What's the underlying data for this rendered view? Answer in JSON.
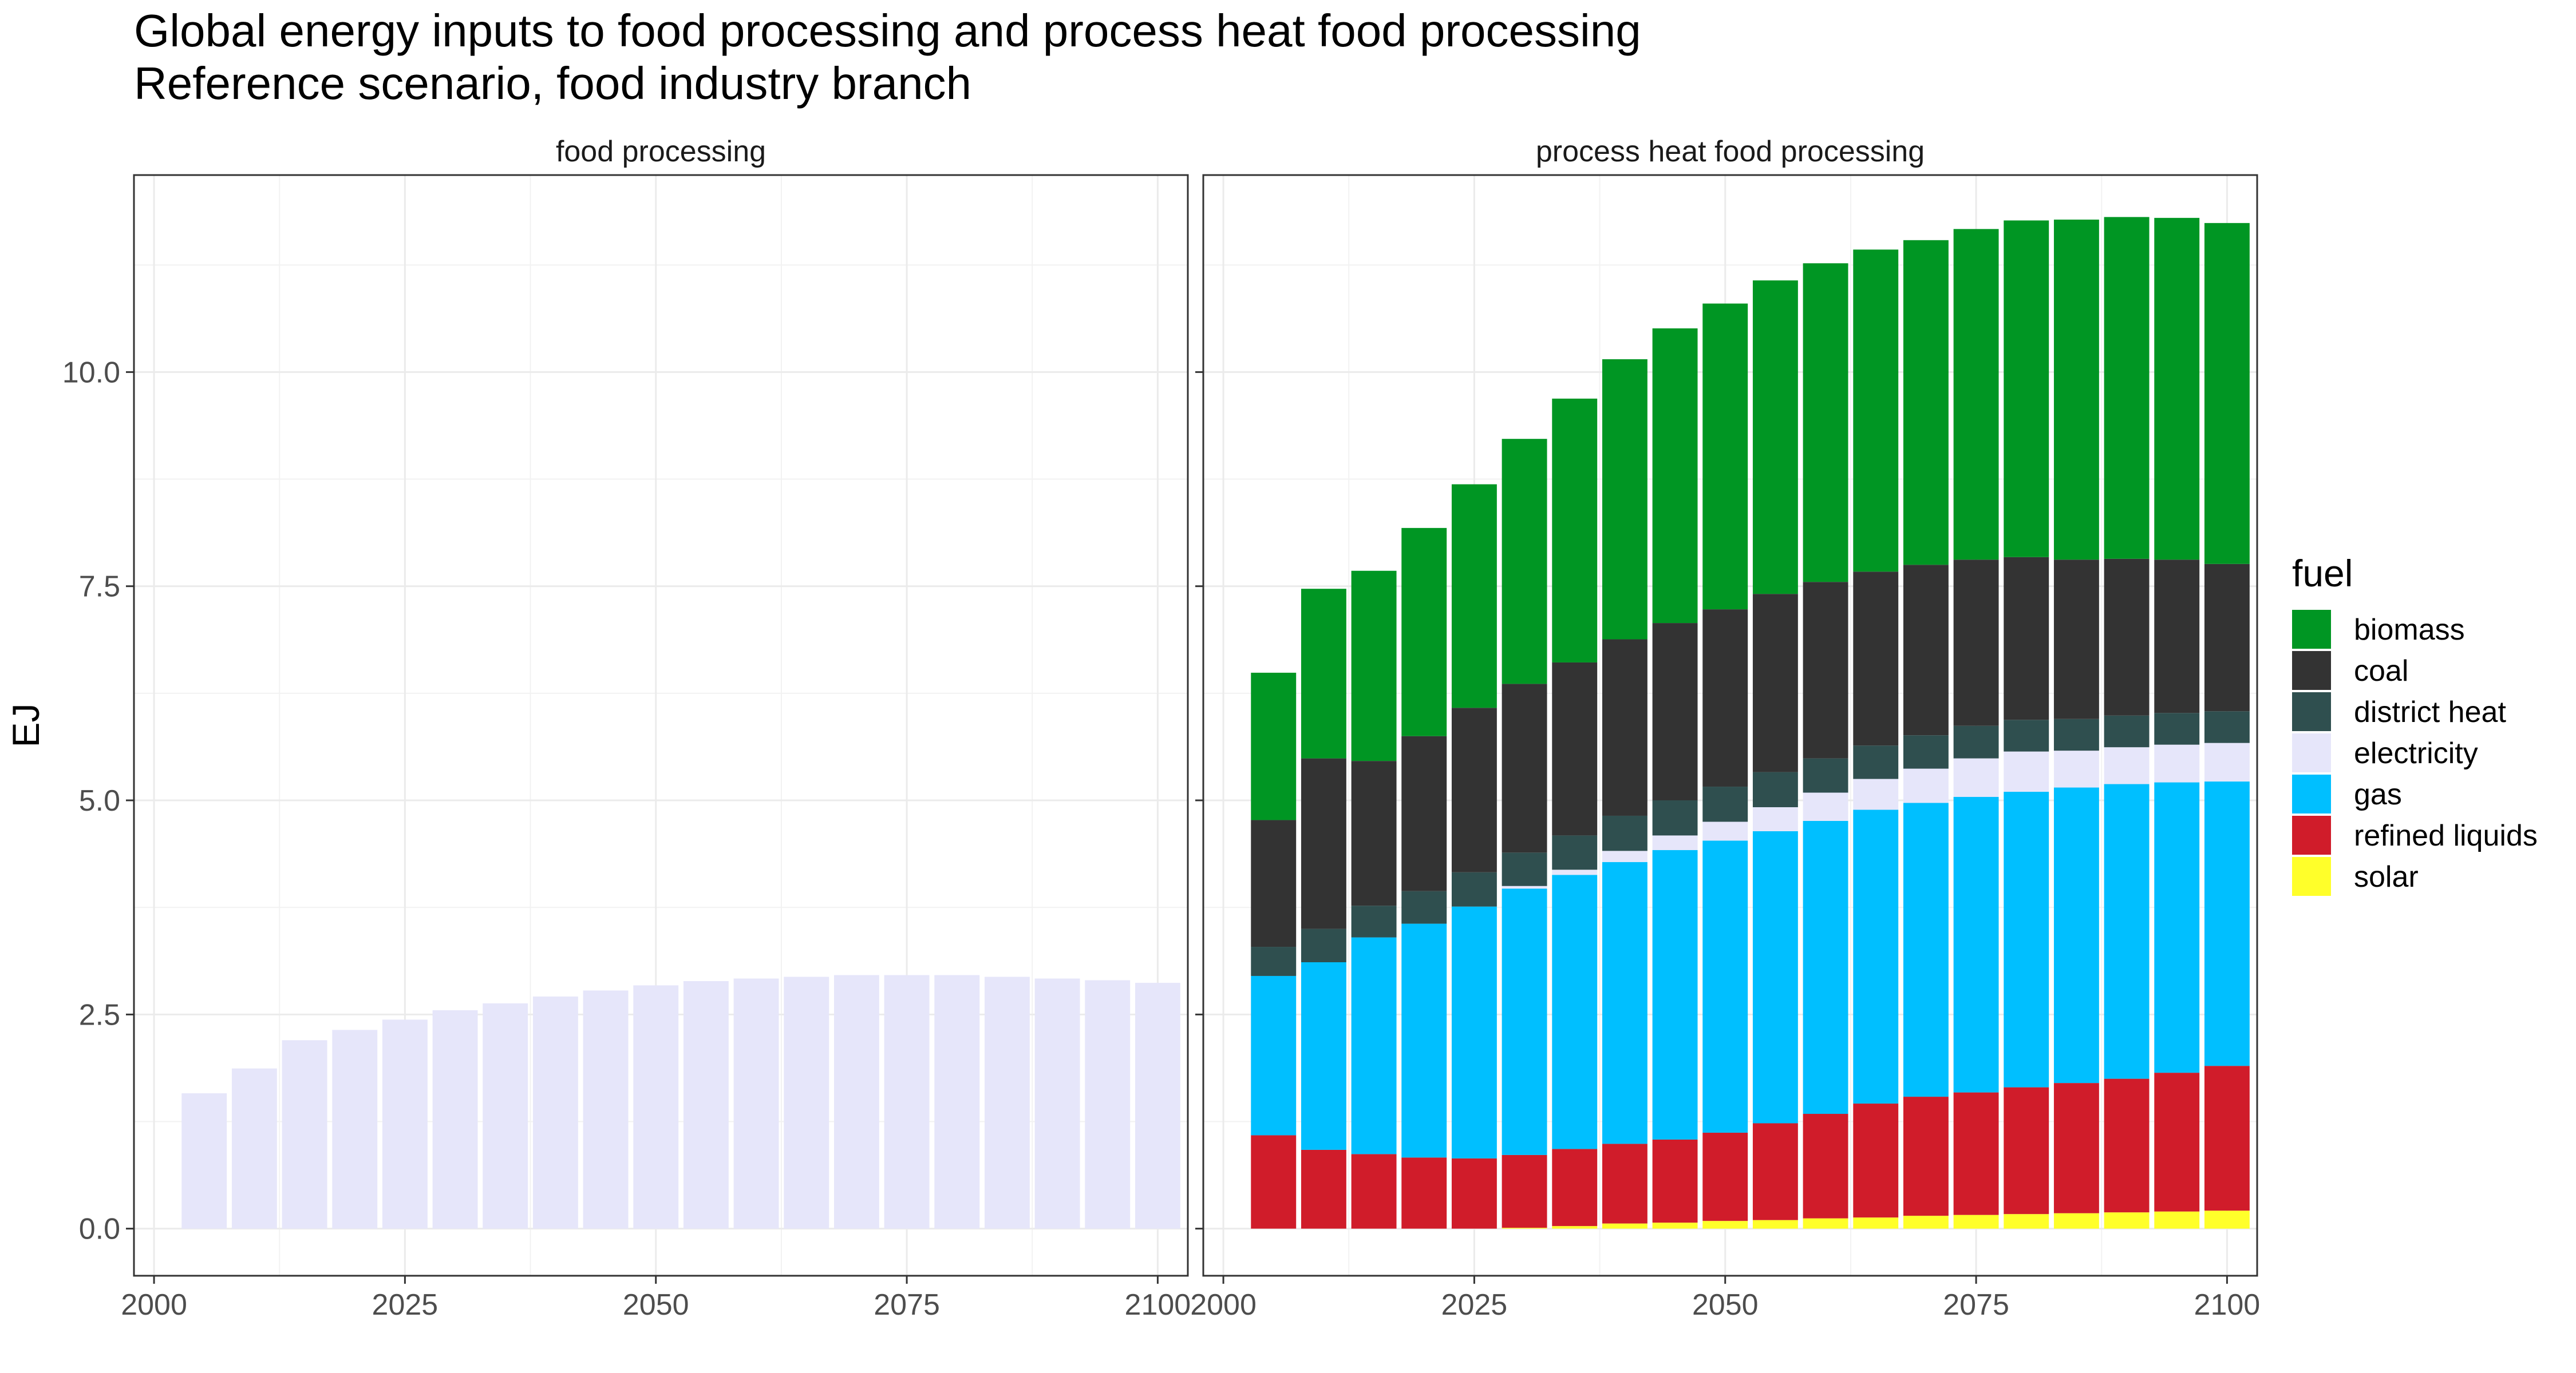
{
  "chart_data": {
    "type": "bar",
    "stacked": true,
    "title": "Global energy inputs to food processing and process heat food processing",
    "subtitle": "Reference scenario, food industry branch",
    "ylabel": "EJ",
    "xlabel": "",
    "ylim": [
      -0.55,
      12.3
    ],
    "xlim": [
      1998,
      2103
    ],
    "grid": true,
    "x_ticks": [
      2000,
      2025,
      2050,
      2075,
      2100
    ],
    "y_ticks": [
      0.0,
      2.5,
      5.0,
      7.5,
      10.0
    ],
    "y_tick_labels": [
      "0.0",
      "2.5",
      "5.0",
      "7.5",
      "10.0"
    ],
    "legend_title": "fuel",
    "legend_position": "right",
    "fuels": [
      "biomass",
      "coal",
      "district heat",
      "electricity",
      "gas",
      "refined liquids",
      "solar"
    ],
    "colors": {
      "biomass": "#009623",
      "coal": "#333333",
      "district heat": "#2f4f4f",
      "electricity": "#e6e6fa",
      "gas": "#00bfff",
      "refined liquids": "#d01c2a",
      "solar": "#ffff2a"
    },
    "stack_order_bottom_to_top": [
      "solar",
      "refined liquids",
      "gas",
      "electricity",
      "district heat",
      "coal",
      "biomass"
    ],
    "x": [
      2005,
      2010,
      2015,
      2020,
      2025,
      2030,
      2035,
      2040,
      2045,
      2050,
      2055,
      2060,
      2065,
      2070,
      2075,
      2080,
      2085,
      2090,
      2095,
      2100
    ],
    "panels": [
      {
        "label": "food processing",
        "series": [
          {
            "name": "electricity",
            "values": [
              1.58,
              1.87,
              2.2,
              2.32,
              2.44,
              2.55,
              2.63,
              2.71,
              2.78,
              2.84,
              2.89,
              2.92,
              2.94,
              2.96,
              2.96,
              2.96,
              2.94,
              2.92,
              2.9,
              2.87
            ]
          }
        ]
      },
      {
        "label": "process heat food processing",
        "series": [
          {
            "name": "solar",
            "values": [
              0.0,
              0.0,
              0.0,
              0.0,
              0.0,
              0.01,
              0.03,
              0.06,
              0.07,
              0.09,
              0.1,
              0.12,
              0.13,
              0.15,
              0.16,
              0.17,
              0.18,
              0.19,
              0.2,
              0.21
            ]
          },
          {
            "name": "refined liquids",
            "values": [
              1.09,
              0.92,
              0.87,
              0.83,
              0.82,
              0.85,
              0.9,
              0.93,
              0.97,
              1.03,
              1.13,
              1.22,
              1.33,
              1.39,
              1.43,
              1.48,
              1.52,
              1.56,
              1.62,
              1.69
            ]
          },
          {
            "name": "gas",
            "values": [
              1.86,
              2.19,
              2.53,
              2.73,
              2.94,
              3.11,
              3.2,
              3.29,
              3.38,
              3.41,
              3.41,
              3.42,
              3.43,
              3.43,
              3.45,
              3.45,
              3.45,
              3.44,
              3.39,
              3.32
            ]
          },
          {
            "name": "electricity",
            "values": [
              0.0,
              0.0,
              0.0,
              0.0,
              0.0,
              0.03,
              0.06,
              0.13,
              0.17,
              0.22,
              0.28,
              0.33,
              0.36,
              0.4,
              0.45,
              0.47,
              0.43,
              0.43,
              0.44,
              0.45
            ]
          },
          {
            "name": "district heat",
            "values": [
              0.34,
              0.39,
              0.37,
              0.38,
              0.4,
              0.39,
              0.4,
              0.41,
              0.41,
              0.41,
              0.41,
              0.4,
              0.39,
              0.39,
              0.38,
              0.37,
              0.37,
              0.37,
              0.37,
              0.37
            ]
          },
          {
            "name": "coal",
            "values": [
              1.48,
              1.99,
              1.69,
              1.81,
              1.92,
              1.97,
              2.02,
              2.06,
              2.07,
              2.07,
              2.08,
              2.06,
              2.03,
              1.99,
              1.94,
              1.9,
              1.86,
              1.83,
              1.79,
              1.72
            ]
          },
          {
            "name": "biomass",
            "values": [
              1.72,
              1.98,
              2.22,
              2.43,
              2.61,
              2.86,
              3.08,
              3.27,
              3.44,
              3.57,
              3.66,
              3.72,
              3.76,
              3.79,
              3.86,
              3.93,
              3.97,
              3.99,
              3.99,
              3.98
            ]
          }
        ]
      }
    ]
  }
}
